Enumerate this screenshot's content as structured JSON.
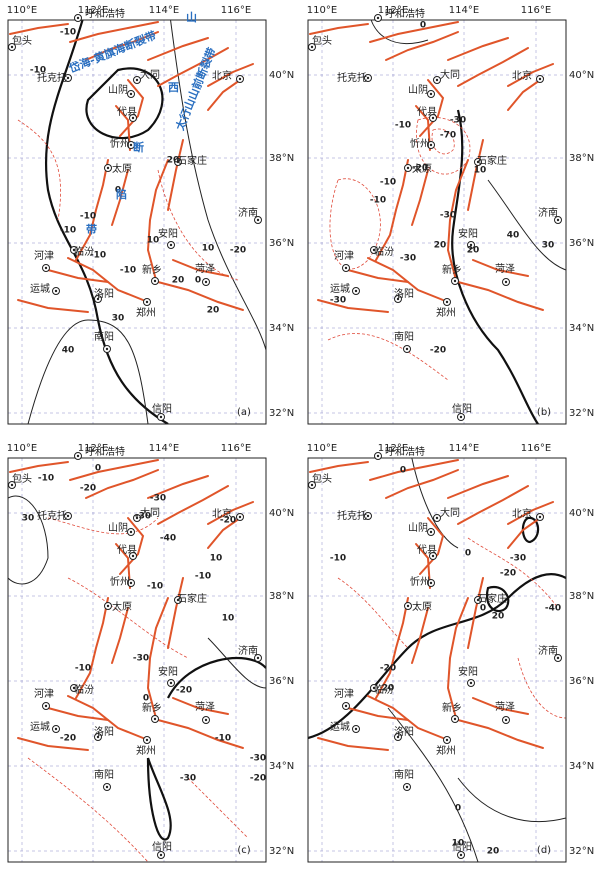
{
  "lon_labels": [
    "110°E",
    "112°E",
    "114°E",
    "116°E"
  ],
  "lat_labels": [
    "40°N",
    "38°N",
    "36°N",
    "34°N",
    "32°N"
  ],
  "cities": [
    "包头",
    "呼和浩特",
    "托克托",
    "大同",
    "山阴",
    "代县",
    "北京",
    "忻州",
    "太原",
    "石家庄",
    "济南",
    "河津",
    "临汾",
    "安阳",
    "运城",
    "新乡",
    "菏泽",
    "洛阳",
    "郑州",
    "南阳",
    "信阳"
  ],
  "panels": [
    {
      "label": "(a)",
      "annotations": [
        "岱海-黄旗海断裂带",
        "太行山山前断裂带",
        "山",
        "西",
        "断",
        "陷",
        "带"
      ],
      "contour_labels": [
        "-10",
        "-10",
        "20",
        "0",
        "-10",
        "-10",
        "10",
        "-10",
        "-20",
        "10",
        "-10",
        "30",
        "40",
        "0",
        "20",
        "20"
      ]
    },
    {
      "label": "(b)",
      "annotations": [],
      "contour_labels": [
        "0",
        "-10",
        "-30",
        "-70",
        "-20",
        "-10",
        "-10",
        "-30",
        "20",
        "10",
        "-30",
        "-30",
        "20",
        "30",
        "40",
        "-20"
      ]
    },
    {
      "label": "(c)",
      "annotations": [],
      "contour_labels": [
        "0",
        "-10",
        "-20",
        "30",
        "-30",
        "-40",
        "-30",
        "-20",
        "10",
        "-10",
        "-10",
        "10",
        "0",
        "-10",
        "-30",
        "-20",
        "-20",
        "-30",
        "-20",
        "-10",
        "-30"
      ]
    },
    {
      "label": "(d)",
      "annotations": [],
      "contour_labels": [
        "0",
        "-10",
        "0",
        "-30",
        "-20",
        "20",
        "-40",
        "0",
        "20",
        "-20",
        "0",
        "10",
        "20"
      ]
    }
  ]
}
